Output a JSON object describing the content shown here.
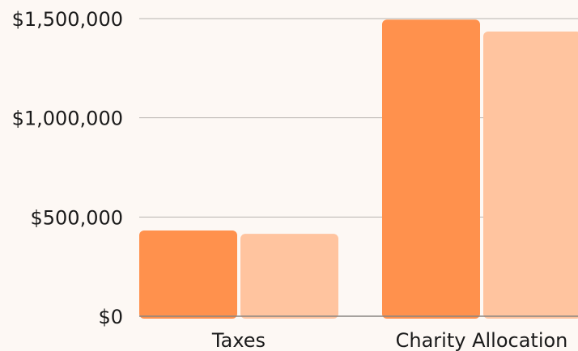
{
  "chart_data": {
    "type": "bar",
    "categories": [
      "Taxes",
      "Charity Allocation"
    ],
    "series": [
      {
        "values": [
          432000,
          1495000
        ],
        "color": "#ff914d"
      },
      {
        "values": [
          415000,
          1435000
        ],
        "color": "#ffc49f"
      }
    ],
    "yticks": [
      {
        "value": 0,
        "label": "$0"
      },
      {
        "value": 500000,
        "label": "$500,000"
      },
      {
        "value": 1000000,
        "label": "$1,000,000"
      },
      {
        "value": 1500000,
        "label": "$1,500,000"
      }
    ],
    "ylim": [
      0,
      1500000
    ],
    "grid": true,
    "legend": "none",
    "title": "",
    "xlabel": "",
    "ylabel": ""
  }
}
